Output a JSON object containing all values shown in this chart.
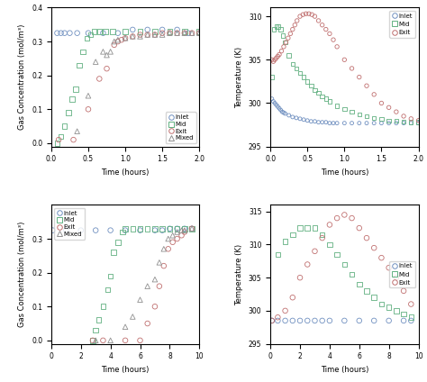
{
  "top_left": {
    "xlabel": "Time (hours)",
    "ylabel": "Gas Concentration (mol/m³)",
    "xlim": [
      0,
      2.0
    ],
    "ylim": [
      -0.01,
      0.4
    ],
    "xticks": [
      0.0,
      0.5,
      1.0,
      1.5,
      2.0
    ],
    "yticks": [
      0.0,
      0.1,
      0.2,
      0.3,
      0.4
    ],
    "inlet_t": [
      0.08,
      0.13,
      0.18,
      0.25,
      0.35,
      0.5,
      0.7,
      0.9,
      1.1,
      1.3,
      1.5,
      1.7,
      1.85,
      2.0
    ],
    "inlet_c": [
      0.325,
      0.325,
      0.325,
      0.325,
      0.325,
      0.325,
      0.325,
      0.325,
      0.335,
      0.335,
      0.335,
      0.335,
      0.325,
      0.325
    ],
    "mid_t": [
      0.08,
      0.13,
      0.18,
      0.23,
      0.28,
      0.33,
      0.38,
      0.43,
      0.48,
      0.53,
      0.58,
      0.65,
      0.73,
      0.83,
      1.0,
      1.2,
      1.4,
      1.6,
      1.8,
      2.0
    ],
    "mid_c": [
      0.0,
      0.02,
      0.05,
      0.09,
      0.13,
      0.16,
      0.23,
      0.27,
      0.31,
      0.32,
      0.33,
      0.33,
      0.33,
      0.33,
      0.33,
      0.33,
      0.33,
      0.33,
      0.33,
      0.33
    ],
    "exit_t": [
      0.1,
      0.3,
      0.5,
      0.65,
      0.75,
      0.85,
      0.9,
      0.95,
      1.0,
      1.1,
      1.2,
      1.3,
      1.4,
      1.5,
      1.6,
      1.7,
      1.8,
      1.9,
      2.0
    ],
    "exit_c": [
      0.01,
      0.01,
      0.1,
      0.19,
      0.22,
      0.29,
      0.3,
      0.305,
      0.31,
      0.315,
      0.32,
      0.32,
      0.32,
      0.325,
      0.325,
      0.325,
      0.325,
      0.325,
      0.325
    ],
    "mixed_t": [
      0.35,
      0.5,
      0.6,
      0.7,
      0.75,
      0.8,
      0.85,
      0.9,
      1.0,
      1.1,
      1.2,
      1.3,
      1.4,
      1.5,
      1.6,
      1.7,
      1.8,
      1.9,
      2.0
    ],
    "mixed_c": [
      0.035,
      0.14,
      0.24,
      0.27,
      0.26,
      0.27,
      0.3,
      0.305,
      0.31,
      0.315,
      0.315,
      0.32,
      0.32,
      0.32,
      0.325,
      0.325,
      0.325,
      0.325,
      0.325
    ],
    "colors": {
      "inlet": "#7090c0",
      "mid": "#60b080",
      "exit": "#c07070",
      "mixed": "#909090"
    },
    "legend_loc": "lower right"
  },
  "top_right": {
    "xlabel": "Time (hours)",
    "ylabel": "Temperature (K)",
    "xlim": [
      0,
      2.0
    ],
    "ylim": [
      295,
      311
    ],
    "xticks": [
      0.0,
      0.5,
      1.0,
      1.5,
      2.0
    ],
    "yticks": [
      295,
      300,
      305,
      310
    ],
    "inlet_t": [
      0.02,
      0.04,
      0.06,
      0.08,
      0.1,
      0.12,
      0.14,
      0.16,
      0.18,
      0.2,
      0.25,
      0.3,
      0.35,
      0.4,
      0.45,
      0.5,
      0.55,
      0.6,
      0.65,
      0.7,
      0.75,
      0.8,
      0.85,
      0.9,
      1.0,
      1.1,
      1.2,
      1.3,
      1.4,
      1.5,
      1.6,
      1.7,
      1.8,
      1.9,
      2.0
    ],
    "inlet_T": [
      300.5,
      300.2,
      300.0,
      299.8,
      299.6,
      299.4,
      299.2,
      299.0,
      298.9,
      298.8,
      298.6,
      298.4,
      298.3,
      298.2,
      298.1,
      298.0,
      297.9,
      297.9,
      297.8,
      297.8,
      297.8,
      297.7,
      297.7,
      297.7,
      297.7,
      297.7,
      297.7,
      297.7,
      297.7,
      297.7,
      297.7,
      297.7,
      297.7,
      297.7,
      297.7
    ],
    "mid_t": [
      0.02,
      0.05,
      0.08,
      0.11,
      0.14,
      0.17,
      0.2,
      0.25,
      0.3,
      0.35,
      0.4,
      0.45,
      0.5,
      0.55,
      0.6,
      0.65,
      0.7,
      0.75,
      0.8,
      0.9,
      1.0,
      1.1,
      1.2,
      1.3,
      1.4,
      1.5,
      1.6,
      1.7,
      1.8,
      1.9,
      2.0
    ],
    "mid_T": [
      303.0,
      308.5,
      308.8,
      308.8,
      308.5,
      307.8,
      307.0,
      305.5,
      304.5,
      304.0,
      303.5,
      303.0,
      302.5,
      302.0,
      301.5,
      301.2,
      300.8,
      300.5,
      300.2,
      299.7,
      299.3,
      299.0,
      298.7,
      298.5,
      298.3,
      298.2,
      298.0,
      298.0,
      297.9,
      297.8,
      297.8
    ],
    "exit_t": [
      0.02,
      0.04,
      0.06,
      0.08,
      0.1,
      0.12,
      0.15,
      0.18,
      0.21,
      0.24,
      0.27,
      0.3,
      0.33,
      0.36,
      0.4,
      0.44,
      0.48,
      0.52,
      0.56,
      0.6,
      0.65,
      0.7,
      0.75,
      0.8,
      0.85,
      0.9,
      1.0,
      1.1,
      1.2,
      1.3,
      1.4,
      1.5,
      1.6,
      1.7,
      1.8,
      1.9,
      2.0
    ],
    "exit_T": [
      305.0,
      304.8,
      305.0,
      305.2,
      305.4,
      305.6,
      306.0,
      306.5,
      307.0,
      307.5,
      308.0,
      308.5,
      309.0,
      309.5,
      310.0,
      310.2,
      310.3,
      310.3,
      310.2,
      310.0,
      309.5,
      309.0,
      308.5,
      308.0,
      307.3,
      306.5,
      305.0,
      304.0,
      303.0,
      302.0,
      301.0,
      300.0,
      299.5,
      299.0,
      298.5,
      298.2,
      298.0
    ],
    "colors": {
      "inlet": "#7090c0",
      "mid": "#60b080",
      "exit": "#c07070"
    },
    "legend_loc": "upper right"
  },
  "bottom_left": {
    "xlabel": "Time (hours)",
    "ylabel": "Gas Concentration (mol/m³)",
    "xlim": [
      0,
      10
    ],
    "ylim": [
      -0.01,
      0.4
    ],
    "xticks": [
      0,
      2,
      4,
      6,
      8,
      10
    ],
    "yticks": [
      0.0,
      0.1,
      0.2,
      0.3
    ],
    "inlet_t": [
      0.1,
      1.0,
      2.0,
      3.0,
      4.0,
      5.0,
      6.0,
      7.0,
      7.5,
      8.0,
      8.5,
      9.0,
      9.5
    ],
    "inlet_c": [
      0.325,
      0.325,
      0.325,
      0.325,
      0.325,
      0.325,
      0.325,
      0.325,
      0.325,
      0.33,
      0.33,
      0.33,
      0.33
    ],
    "mid_t": [
      2.8,
      3.0,
      3.2,
      3.5,
      3.8,
      4.0,
      4.2,
      4.5,
      4.8,
      5.0,
      5.5,
      6.0,
      6.5,
      7.0,
      7.5,
      8.0,
      8.5,
      9.0,
      9.5
    ],
    "mid_c": [
      0.0,
      0.03,
      0.06,
      0.1,
      0.15,
      0.19,
      0.26,
      0.29,
      0.32,
      0.33,
      0.33,
      0.33,
      0.33,
      0.33,
      0.33,
      0.33,
      0.33,
      0.33,
      0.33
    ],
    "exit_t": [
      2.8,
      3.5,
      5.0,
      6.0,
      6.5,
      7.0,
      7.3,
      7.6,
      7.9,
      8.2,
      8.5,
      8.8,
      9.0,
      9.5
    ],
    "exit_c": [
      0.0,
      0.0,
      0.0,
      0.0,
      0.05,
      0.1,
      0.16,
      0.22,
      0.27,
      0.29,
      0.3,
      0.31,
      0.32,
      0.33
    ],
    "mixed_t": [
      3.0,
      4.0,
      5.0,
      5.5,
      6.0,
      6.5,
      7.0,
      7.3,
      7.6,
      7.9,
      8.2,
      8.5,
      8.8,
      9.0,
      9.5
    ],
    "mixed_c": [
      0.0,
      0.0,
      0.04,
      0.07,
      0.12,
      0.16,
      0.18,
      0.23,
      0.27,
      0.3,
      0.31,
      0.32,
      0.325,
      0.325,
      0.33
    ],
    "colors": {
      "inlet": "#7090c0",
      "mid": "#60b080",
      "exit": "#c07070",
      "mixed": "#909090"
    },
    "legend_loc": "center left"
  },
  "bottom_right": {
    "xlabel": "Time (hours)",
    "ylabel": "Temperature (K)",
    "xlim": [
      0,
      10
    ],
    "ylim": [
      295,
      316
    ],
    "xticks": [
      0,
      2,
      4,
      6,
      8,
      10
    ],
    "yticks": [
      295,
      300,
      305,
      310,
      315
    ],
    "inlet_t": [
      0.1,
      0.5,
      1.0,
      1.5,
      2.0,
      2.5,
      3.0,
      3.5,
      4.0,
      5.0,
      6.0,
      7.0,
      8.0,
      9.0,
      9.5
    ],
    "inlet_T": [
      298.5,
      298.5,
      298.5,
      298.5,
      298.5,
      298.5,
      298.5,
      298.5,
      298.5,
      298.5,
      298.5,
      298.5,
      298.5,
      298.5,
      298.5
    ],
    "mid_t": [
      0.5,
      1.0,
      1.5,
      2.0,
      2.5,
      3.0,
      3.5,
      4.0,
      4.5,
      5.0,
      5.5,
      6.0,
      6.5,
      7.0,
      7.5,
      8.0,
      8.5,
      9.0,
      9.5
    ],
    "mid_T": [
      308.5,
      310.5,
      311.5,
      312.5,
      312.5,
      312.5,
      311.5,
      310.0,
      308.5,
      307.0,
      305.5,
      304.0,
      303.0,
      302.0,
      301.0,
      300.5,
      300.0,
      299.5,
      299.0
    ],
    "exit_t": [
      0.1,
      0.5,
      1.0,
      1.5,
      2.0,
      2.5,
      3.0,
      3.5,
      4.0,
      4.5,
      5.0,
      5.5,
      6.0,
      6.5,
      7.0,
      7.5,
      8.0,
      8.5,
      9.0,
      9.5
    ],
    "exit_T": [
      298.5,
      299.0,
      300.0,
      302.0,
      305.0,
      307.0,
      309.0,
      311.0,
      313.0,
      314.0,
      314.5,
      314.0,
      312.5,
      311.0,
      309.5,
      308.0,
      306.5,
      305.0,
      303.0,
      301.0
    ],
    "colors": {
      "inlet": "#7090c0",
      "mid": "#60b080",
      "exit": "#c07070"
    },
    "legend_loc": "center right"
  }
}
